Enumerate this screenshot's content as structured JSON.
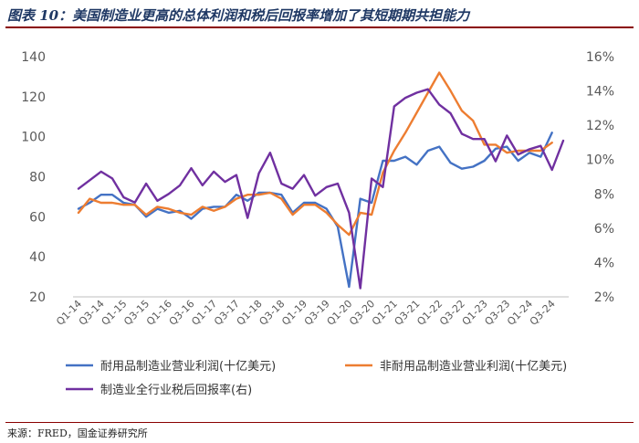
{
  "title": "图表 10：美国制造业更高的总体利润和税后回报率增加了其短期期共担能力",
  "source": "来源：FRED，国金证券研究所",
  "chart_data": {
    "type": "line",
    "x": [
      "Q1-14",
      "Q2-14",
      "Q3-14",
      "Q4-14",
      "Q1-15",
      "Q2-15",
      "Q3-15",
      "Q4-15",
      "Q1-16",
      "Q2-16",
      "Q3-16",
      "Q4-16",
      "Q1-17",
      "Q2-17",
      "Q3-17",
      "Q4-17",
      "Q1-18",
      "Q2-18",
      "Q3-18",
      "Q4-18",
      "Q1-19",
      "Q2-19",
      "Q3-19",
      "Q4-19",
      "Q1-20",
      "Q2-20",
      "Q3-20",
      "Q4-20",
      "Q1-21",
      "Q2-21",
      "Q3-21",
      "Q4-21",
      "Q1-22",
      "Q2-22",
      "Q3-22",
      "Q4-22",
      "Q1-23",
      "Q2-23",
      "Q3-23",
      "Q4-23",
      "Q1-24",
      "Q2-24",
      "Q3-24",
      "Q4-24"
    ],
    "x_tick_labels": [
      "Q1-14",
      "Q3-14",
      "Q1-15",
      "Q3-15",
      "Q1-16",
      "Q3-16",
      "Q1-17",
      "Q3-17",
      "Q1-18",
      "Q3-18",
      "Q1-19",
      "Q3-19",
      "Q1-20",
      "Q3-20",
      "Q1-21",
      "Q3-21",
      "Q1-22",
      "Q3-22",
      "Q1-23",
      "Q3-23",
      "Q1-24",
      "Q3-24"
    ],
    "y_left": {
      "range": [
        20,
        140
      ],
      "ticks": [
        "20",
        "40",
        "60",
        "80",
        "100",
        "120",
        "140"
      ]
    },
    "y_right": {
      "range": [
        2,
        16
      ],
      "ticks": [
        "2%",
        "4%",
        "6%",
        "8%",
        "10%",
        "12%",
        "14%",
        "16%"
      ]
    },
    "grid": false,
    "legend_position": "bottom",
    "series": [
      {
        "name": "耐用品制造业营业利润(十亿美元)",
        "axis": "left",
        "color": "#4472c4",
        "values": [
          64,
          67,
          71,
          71,
          67,
          66,
          60,
          64,
          62,
          63,
          59,
          64,
          65,
          65,
          71,
          68,
          72,
          72,
          71,
          62,
          67,
          67,
          64,
          55,
          25,
          69,
          67,
          88,
          88,
          90,
          86,
          93,
          95,
          87,
          84,
          85,
          88,
          94,
          95,
          88,
          92,
          90,
          102,
          null
        ]
      },
      {
        "name": "非耐用品制造业营业利润(十亿美元)",
        "axis": "left",
        "color": "#ed7d31",
        "values": [
          62,
          69,
          67,
          67,
          66,
          66,
          61,
          65,
          64,
          62,
          61,
          65,
          63,
          65,
          69,
          71,
          71,
          72,
          69,
          61,
          66,
          66,
          62,
          56,
          51,
          62,
          61,
          82,
          93,
          102,
          112,
          122,
          132,
          123,
          113,
          108,
          96,
          96,
          92,
          93,
          93,
          93,
          97,
          null
        ]
      },
      {
        "name": "制造业全行业税后回报率(右)",
        "axis": "right",
        "color": "#7030a0",
        "values": [
          8.3,
          8.8,
          9.3,
          8.9,
          7.8,
          7.5,
          8.6,
          7.6,
          8.0,
          8.5,
          9.5,
          8.5,
          9.3,
          8.7,
          9.1,
          6.6,
          9.2,
          10.4,
          8.6,
          8.3,
          9.1,
          7.9,
          8.4,
          8.6,
          6.9,
          2.5,
          8.9,
          8.4,
          13.1,
          13.6,
          13.9,
          14.1,
          13.2,
          12.7,
          11.5,
          11.2,
          11.2,
          9.9,
          11.4,
          10.3,
          10.6,
          10.8,
          9.4,
          11.1
        ]
      }
    ]
  }
}
